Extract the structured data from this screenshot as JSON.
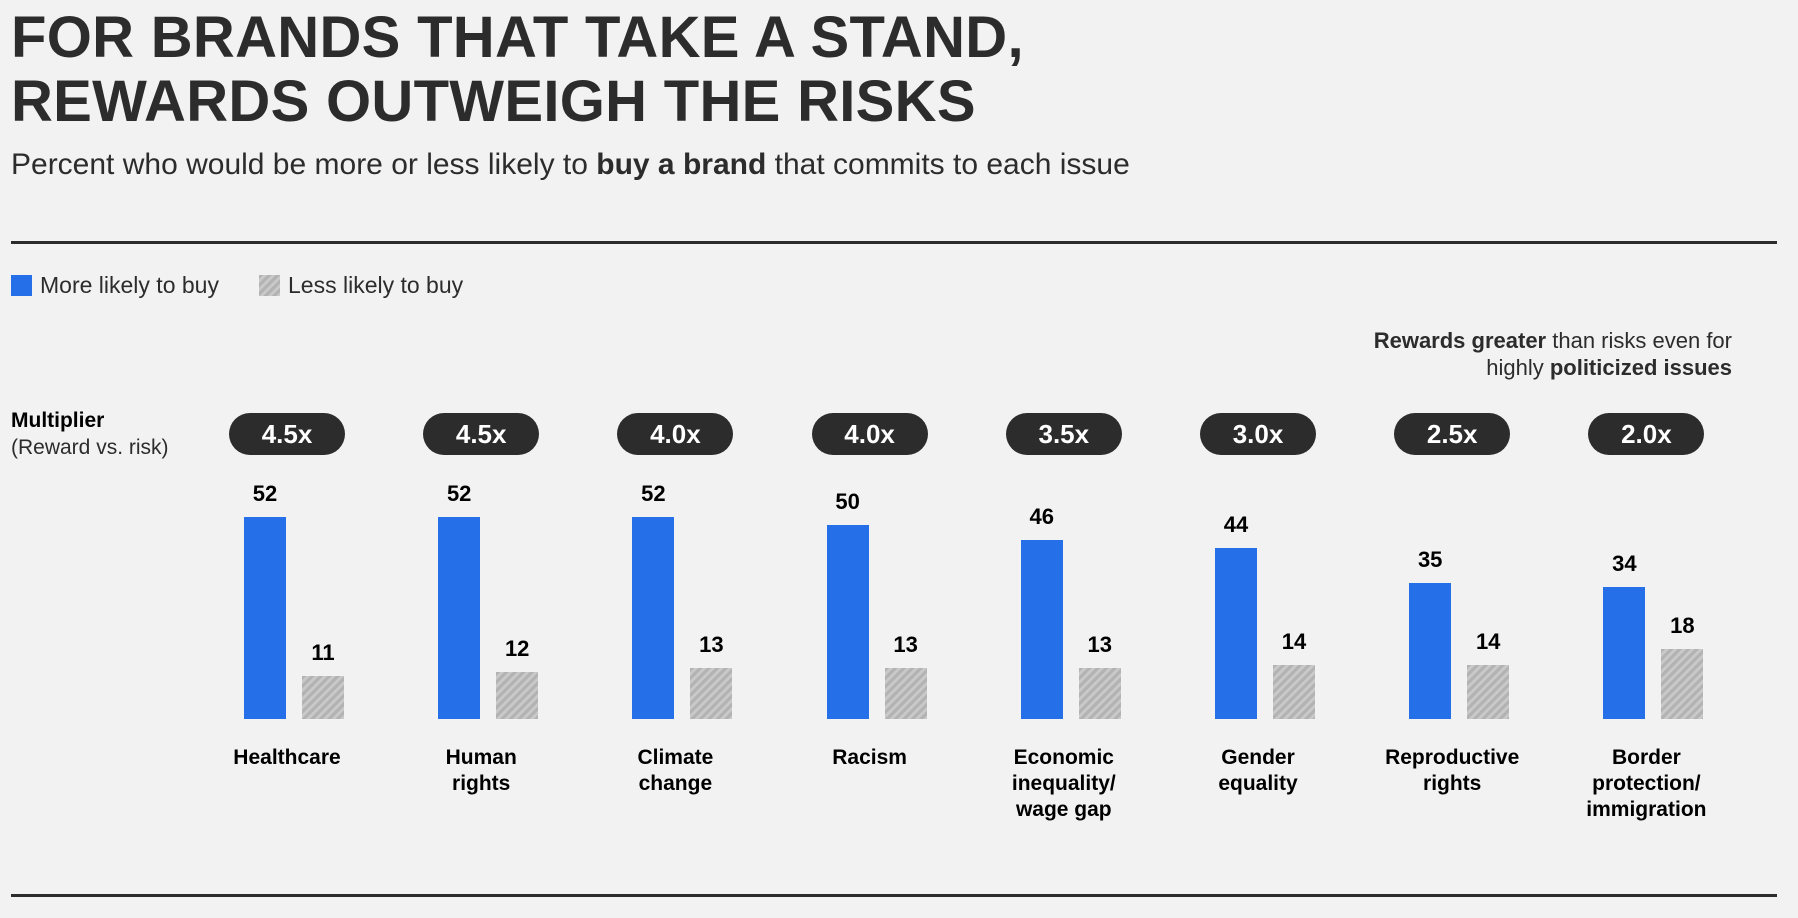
{
  "title_line1": "FOR BRANDS THAT TAKE A STAND,",
  "title_line2": "REWARDS OUTWEIGH THE RISKS",
  "subtitle": {
    "pre": "Percent who would be more or less likely to ",
    "bold": "buy a brand",
    "post": " that commits to each issue"
  },
  "annotation": {
    "b1": "Rewards greater",
    "t1": " than risks even for",
    "t2": "highly ",
    "b2": "politicized issues"
  },
  "multiplier_label": "Multiplier",
  "multiplier_sublabel": "(Reward vs. risk)",
  "colors": {
    "more": "#2570e8",
    "less": "#b3b3b3",
    "pill": "#2b2c2b",
    "background": "#f2f2f2"
  },
  "chart_data": {
    "type": "bar",
    "categories": [
      "Healthcare",
      "Human\nrights",
      "Climate\nchange",
      "Racism",
      "Economic\ninequality/\nwage gap",
      "Gender\nequality",
      "Reproductive\nrights",
      "Border\nprotection/\nimmigration"
    ],
    "series": [
      {
        "name": "More likely to buy",
        "values": [
          52,
          52,
          52,
          50,
          46,
          44,
          35,
          34
        ]
      },
      {
        "name": "Less likely to buy",
        "values": [
          11,
          12,
          13,
          13,
          13,
          14,
          14,
          18
        ]
      }
    ],
    "multipliers": [
      "4.5x",
      "4.5x",
      "4.0x",
      "4.0x",
      "3.5x",
      "3.0x",
      "2.5x",
      "2.0x"
    ],
    "legend_position": "top-left",
    "grid": false
  }
}
